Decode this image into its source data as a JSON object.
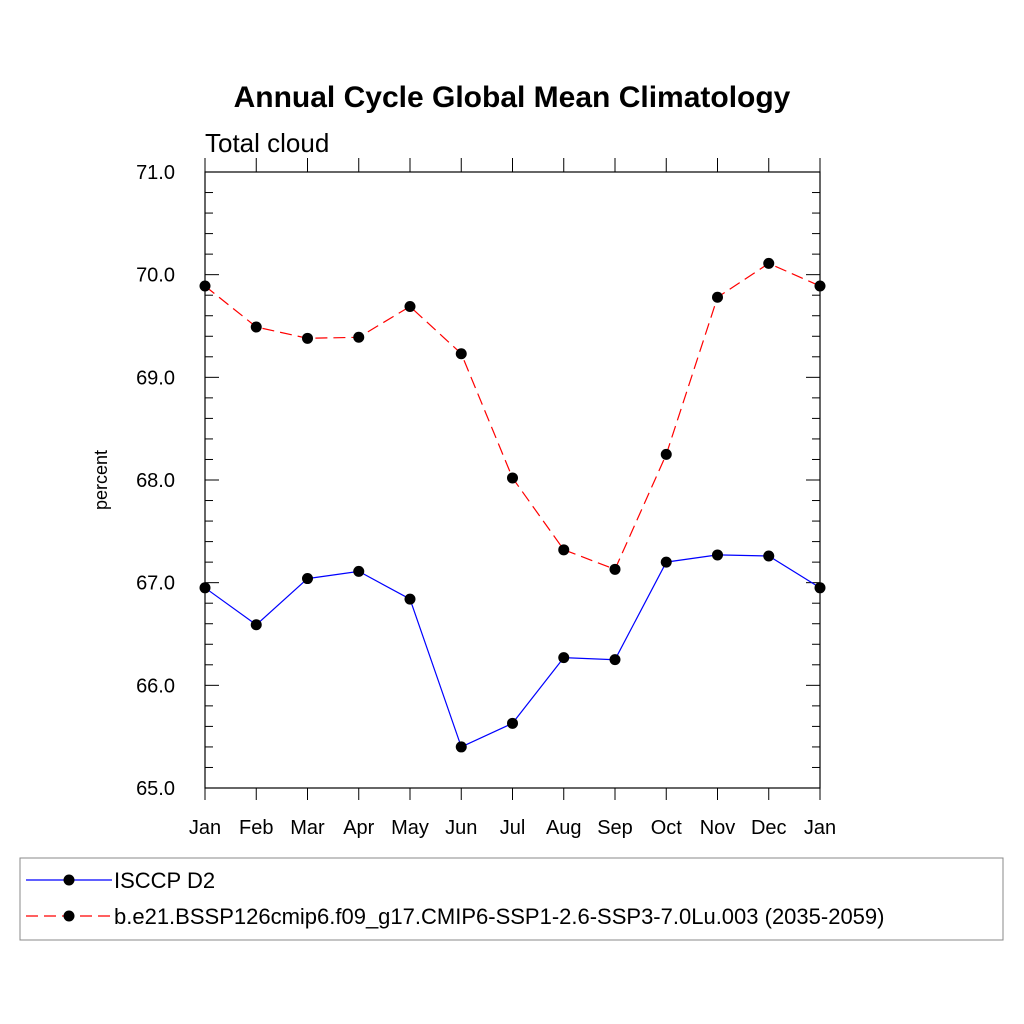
{
  "chart_data": {
    "type": "line",
    "title": "Annual Cycle Global Mean Climatology",
    "subtitle": "Total cloud",
    "xlabel": "",
    "ylabel": "percent",
    "categories": [
      "Jan",
      "Feb",
      "Mar",
      "Apr",
      "May",
      "Jun",
      "Jul",
      "Aug",
      "Sep",
      "Oct",
      "Nov",
      "Dec",
      "Jan"
    ],
    "ylim": [
      65.0,
      71.0
    ],
    "yticks": [
      "65.0",
      "66.0",
      "67.0",
      "68.0",
      "69.0",
      "70.0",
      "71.0"
    ],
    "grid": false,
    "legend_position": "bottom",
    "series": [
      {
        "name": "ISCCP D2",
        "color": "#0000ff",
        "line_style": "solid",
        "marker": "filled-circle",
        "values": [
          66.95,
          66.59,
          67.04,
          67.11,
          66.84,
          65.4,
          65.63,
          66.27,
          66.25,
          67.2,
          67.27,
          67.26,
          66.95
        ]
      },
      {
        "name": "b.e21.BSSP126cmip6.f09_g17.CMIP6-SSP1-2.6-SSP3-7.0Lu.003 (2035-2059)",
        "color": "#ff0000",
        "line_style": "dashed",
        "marker": "filled-circle",
        "values": [
          69.89,
          69.49,
          69.38,
          69.39,
          69.69,
          69.23,
          68.02,
          67.32,
          67.13,
          68.25,
          69.78,
          70.11,
          69.89
        ]
      }
    ]
  }
}
